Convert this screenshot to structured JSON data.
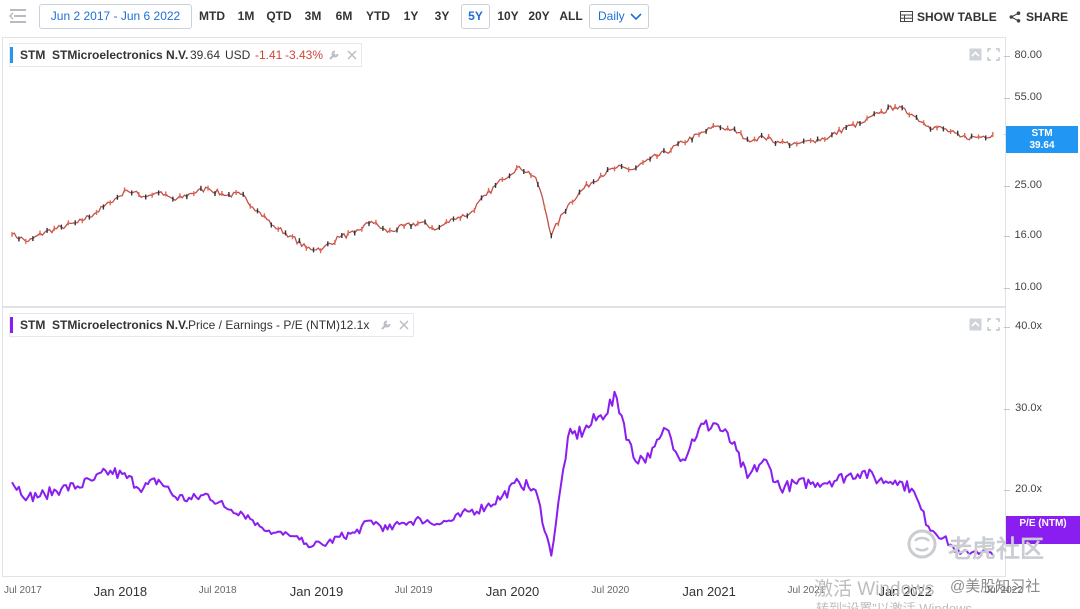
{
  "toolbar": {
    "date_range": "Jun 2 2017 - Jun 6 2022",
    "ranges": [
      "MTD",
      "1M",
      "QTD",
      "3M",
      "6M",
      "YTD",
      "1Y",
      "3Y",
      "5Y",
      "10Y",
      "20Y",
      "ALL"
    ],
    "active_range": "5Y",
    "frequency": "Daily",
    "show_table": "SHOW TABLE",
    "share": "SHARE",
    "icons": [
      "menu-collapse-icon",
      "chevron-down-icon",
      "table-icon",
      "share-icon"
    ]
  },
  "price_legend": {
    "symbol": "STM",
    "name": "STMicroelectronics N.V.",
    "price": "39.64",
    "currency": "USD",
    "change": "-1.41",
    "change_pct": "-3.43%",
    "color": "#2196f3"
  },
  "pe_legend": {
    "symbol": "STM",
    "name": "STMicroelectronics N.V.",
    "metric": "Price / Earnings - P/E (NTM)",
    "value": "12.1x",
    "color": "#8a1ef0"
  },
  "price_tag": {
    "line1": "STM",
    "line2": "39.64"
  },
  "pe_tag": {
    "line1": "P/E (NTM)"
  },
  "watermark": {
    "brand": "老虎社区",
    "activation_line1": "激活 Windows",
    "activation_line2": "转到“设置”以激活 Windows",
    "overlay": "@美股知习社",
    "cut_label": "Jul 2022"
  },
  "chart_data": [
    {
      "type": "line",
      "series": [
        {
          "name": "STM",
          "x": [
            "2017-06",
            "2017-07",
            "2017-08",
            "2017-09",
            "2017-10",
            "2017-11",
            "2017-12",
            "2018-01",
            "2018-02",
            "2018-03",
            "2018-04",
            "2018-05",
            "2018-06",
            "2018-07",
            "2018-08",
            "2018-09",
            "2018-10",
            "2018-11",
            "2018-12",
            "2019-01",
            "2019-02",
            "2019-03",
            "2019-04",
            "2019-05",
            "2019-06",
            "2019-07",
            "2019-08",
            "2019-09",
            "2019-10",
            "2019-11",
            "2019-12",
            "2020-01",
            "2020-02",
            "2020-03",
            "2020-04",
            "2020-05",
            "2020-06",
            "2020-07",
            "2020-08",
            "2020-09",
            "2020-10",
            "2020-11",
            "2020-12",
            "2021-01",
            "2021-02",
            "2021-03",
            "2021-04",
            "2021-05",
            "2021-06",
            "2021-07",
            "2021-08",
            "2021-09",
            "2021-10",
            "2021-11",
            "2021-12",
            "2022-01",
            "2022-02",
            "2022-03",
            "2022-04",
            "2022-05",
            "2022-06"
          ],
          "values": [
            16.2,
            15.2,
            16.5,
            17.3,
            18.0,
            19.5,
            21.5,
            24.0,
            22.8,
            23.5,
            22.0,
            23.4,
            24.5,
            23.0,
            23.2,
            20.0,
            17.5,
            16.0,
            14.3,
            14.3,
            15.8,
            16.4,
            18.2,
            16.5,
            17.4,
            18.0,
            17.0,
            18.6,
            19.5,
            23.0,
            26.5,
            29.8,
            27.0,
            16.0,
            21.0,
            24.5,
            27.5,
            29.5,
            29.0,
            31.8,
            33.8,
            37.0,
            39.6,
            42.6,
            41.5,
            38.0,
            38.6,
            36.8,
            36.4,
            37.5,
            38.8,
            42.2,
            44.0,
            47.9,
            50.9,
            47.5,
            42.7,
            41.7,
            38.8,
            38.6,
            39.64
          ]
        }
      ],
      "yticks": [
        10,
        16,
        25,
        40,
        55,
        80
      ],
      "ytick_labels": [
        "10.00",
        "16.00",
        "25.00",
        "40.00",
        "55.00",
        "80.00"
      ],
      "ylim": [
        9,
        90
      ],
      "log_scale": true,
      "xlim": [
        "2017-06-02",
        "2022-06-06"
      ]
    },
    {
      "type": "line",
      "series": [
        {
          "name": "Price / Earnings - P/E (NTM)",
          "x": [
            "2017-06",
            "2017-07",
            "2017-08",
            "2017-09",
            "2017-10",
            "2017-11",
            "2017-12",
            "2018-01",
            "2018-02",
            "2018-03",
            "2018-04",
            "2018-05",
            "2018-06",
            "2018-07",
            "2018-08",
            "2018-09",
            "2018-10",
            "2018-11",
            "2018-12",
            "2019-01",
            "2019-02",
            "2019-03",
            "2019-04",
            "2019-05",
            "2019-06",
            "2019-07",
            "2019-08",
            "2019-09",
            "2019-10",
            "2019-11",
            "2019-12",
            "2020-01",
            "2020-02",
            "2020-03",
            "2020-04",
            "2020-05",
            "2020-06",
            "2020-07",
            "2020-08",
            "2020-09",
            "2020-10",
            "2020-11",
            "2020-12",
            "2021-01",
            "2021-02",
            "2021-03",
            "2021-04",
            "2021-05",
            "2021-06",
            "2021-07",
            "2021-08",
            "2021-09",
            "2021-10",
            "2021-11",
            "2021-12",
            "2022-01",
            "2022-02",
            "2022-03",
            "2022-04",
            "2022-05",
            "2022-06"
          ],
          "values": [
            21.0,
            19.2,
            19.5,
            20.2,
            20.5,
            21.3,
            22.4,
            21.5,
            20.3,
            21.3,
            19.2,
            18.9,
            19.5,
            18.0,
            17.4,
            16.0,
            14.8,
            14.4,
            13.5,
            13.3,
            14.3,
            14.8,
            16.3,
            15.2,
            16.0,
            16.5,
            15.9,
            16.4,
            17.4,
            18.0,
            19.3,
            21.0,
            20.0,
            12.0,
            26.5,
            27.3,
            29.2,
            31.3,
            24.0,
            24.0,
            27.5,
            23.8,
            27.6,
            28.2,
            25.7,
            21.5,
            23.8,
            20.3,
            20.8,
            21.0,
            21.1,
            21.7,
            22.3,
            21.2,
            21.2,
            20.2,
            15.6,
            14.2,
            12.2,
            12.6,
            12.1
          ]
        }
      ],
      "yticks": [
        20,
        30,
        40
      ],
      "ytick_labels": [
        "20.0x",
        "30.0x",
        "40.0x"
      ],
      "ylim": [
        10,
        40
      ],
      "xlim": [
        "2017-06-02",
        "2022-06-06"
      ]
    }
  ],
  "xaxis": {
    "labels": [
      {
        "date": "2017-07-01",
        "text": "Jul 2017",
        "major": false
      },
      {
        "date": "2018-01-01",
        "text": "Jan 2018",
        "major": true
      },
      {
        "date": "2018-07-01",
        "text": "Jul 2018",
        "major": false
      },
      {
        "date": "2019-01-01",
        "text": "Jan 2019",
        "major": true
      },
      {
        "date": "2019-07-01",
        "text": "Jul 2019",
        "major": false
      },
      {
        "date": "2020-01-01",
        "text": "Jan 2020",
        "major": true
      },
      {
        "date": "2020-07-01",
        "text": "Jul 2020",
        "major": false
      },
      {
        "date": "2021-01-01",
        "text": "Jan 2021",
        "major": true
      },
      {
        "date": "2021-07-01",
        "text": "Jul 2021",
        "major": false
      },
      {
        "date": "2022-01-01",
        "text": "Jan 2022",
        "major": true
      }
    ]
  }
}
